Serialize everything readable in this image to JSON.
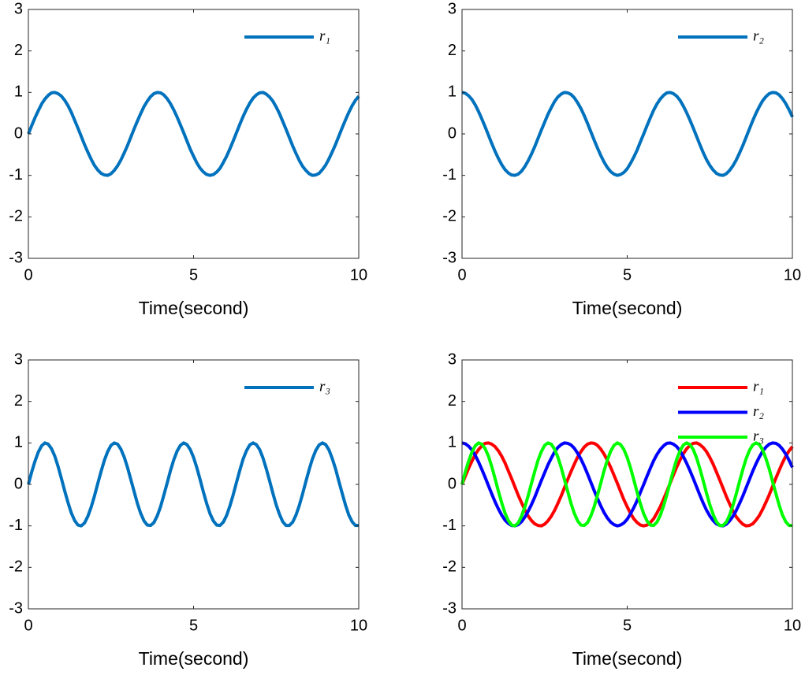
{
  "chart_data": [
    {
      "type": "line",
      "xlabel": "Time(second)",
      "x": [
        0,
        0.1,
        0.2,
        0.3,
        0.4,
        0.5,
        0.6,
        0.7,
        0.8,
        0.9,
        1,
        1.1,
        1.2,
        1.3,
        1.4,
        1.5,
        1.6,
        1.7,
        1.8,
        1.9,
        2,
        2.1,
        2.2,
        2.3,
        2.4,
        2.5,
        2.6,
        2.7,
        2.8,
        2.9,
        3,
        3.1,
        3.2,
        3.3,
        3.4,
        3.5,
        3.6,
        3.7,
        3.8,
        3.9,
        4,
        4.1,
        4.2,
        4.3,
        4.4,
        4.5,
        4.6,
        4.7,
        4.8,
        4.9,
        5,
        5.1,
        5.2,
        5.3,
        5.4,
        5.5,
        5.6,
        5.7,
        5.8,
        5.9,
        6,
        6.1,
        6.2,
        6.3,
        6.4,
        6.5,
        6.6,
        6.7,
        6.8,
        6.9,
        7,
        7.1,
        7.2,
        7.3,
        7.4,
        7.5,
        7.6,
        7.7,
        7.8,
        7.9,
        8,
        8.1,
        8.2,
        8.3,
        8.4,
        8.5,
        8.6,
        8.7,
        8.8,
        8.9,
        9,
        9.1,
        9.2,
        9.3,
        9.4,
        9.5,
        9.6,
        9.7,
        9.8,
        9.9,
        10
      ],
      "series": [
        {
          "name": "r₁",
          "color": "#0072bd",
          "values": [
            0,
            0.2,
            0.39,
            0.56,
            0.72,
            0.84,
            0.93,
            0.99,
            1,
            0.97,
            0.91,
            0.81,
            0.68,
            0.52,
            0.33,
            0.14,
            -0.06,
            -0.26,
            -0.44,
            -0.61,
            -0.76,
            -0.87,
            -0.95,
            -0.99,
            -1,
            -0.96,
            -0.88,
            -0.77,
            -0.63,
            -0.46,
            -0.28,
            -0.08,
            0.12,
            0.31,
            0.49,
            0.66,
            0.79,
            0.9,
            0.97,
            1,
            0.99,
            0.94,
            0.85,
            0.73,
            0.58,
            0.41,
            0.22,
            0.03,
            -0.17,
            -0.37,
            -0.54,
            -0.7,
            -0.83,
            -0.92,
            -0.98,
            -1,
            -0.98,
            -0.92,
            -0.83,
            -0.69,
            -0.54,
            -0.36,
            -0.17,
            0.03,
            0.23,
            0.42,
            0.59,
            0.74,
            0.86,
            0.94,
            0.99,
            1,
            0.96,
            0.89,
            0.79,
            0.65,
            0.49,
            0.3,
            0.11,
            -0.09,
            -0.29,
            -0.47,
            -0.64,
            -0.78,
            -0.88,
            -0.96,
            -1,
            -0.99,
            -0.95,
            -0.86,
            -0.75,
            -0.6,
            -0.43,
            -0.25,
            -0.05,
            0.15,
            0.34,
            0.52,
            0.68,
            0.81,
            0.91
          ]
        }
      ],
      "xlim": [
        0,
        10
      ],
      "ylim": [
        -3,
        3
      ],
      "xticks": [
        0,
        5,
        10
      ],
      "yticks": [
        -3,
        -2,
        -1,
        0,
        1,
        2,
        3
      ],
      "legend": "northeast"
    },
    {
      "type": "line",
      "xlabel": "Time(second)",
      "x": [
        0,
        0.1,
        0.2,
        0.3,
        0.4,
        0.5,
        0.6,
        0.7,
        0.8,
        0.9,
        1,
        1.1,
        1.2,
        1.3,
        1.4,
        1.5,
        1.6,
        1.7,
        1.8,
        1.9,
        2,
        2.1,
        2.2,
        2.3,
        2.4,
        2.5,
        2.6,
        2.7,
        2.8,
        2.9,
        3,
        3.1,
        3.2,
        3.3,
        3.4,
        3.5,
        3.6,
        3.7,
        3.8,
        3.9,
        4,
        4.1,
        4.2,
        4.3,
        4.4,
        4.5,
        4.6,
        4.7,
        4.8,
        4.9,
        5,
        5.1,
        5.2,
        5.3,
        5.4,
        5.5,
        5.6,
        5.7,
        5.8,
        5.9,
        6,
        6.1,
        6.2,
        6.3,
        6.4,
        6.5,
        6.6,
        6.7,
        6.8,
        6.9,
        7,
        7.1,
        7.2,
        7.3,
        7.4,
        7.5,
        7.6,
        7.7,
        7.8,
        7.9,
        8,
        8.1,
        8.2,
        8.3,
        8.4,
        8.5,
        8.6,
        8.7,
        8.8,
        8.9,
        9,
        9.1,
        9.2,
        9.3,
        9.4,
        9.5,
        9.6,
        9.7,
        9.8,
        9.9,
        10
      ],
      "series": [
        {
          "name": "r₂",
          "color": "#0072bd",
          "values": [
            1,
            0.98,
            0.92,
            0.83,
            0.7,
            0.54,
            0.36,
            0.17,
            -0.03,
            -0.23,
            -0.42,
            -0.59,
            -0.74,
            -0.86,
            -0.94,
            -0.99,
            -1,
            -0.97,
            -0.9,
            -0.79,
            -0.65,
            -0.49,
            -0.31,
            -0.11,
            0.09,
            0.28,
            0.47,
            0.63,
            0.78,
            0.89,
            0.96,
            1,
            0.99,
            0.95,
            0.87,
            0.75,
            0.61,
            0.44,
            0.25,
            0.05,
            -0.15,
            -0.34,
            -0.52,
            -0.68,
            -0.81,
            -0.91,
            -0.97,
            -1,
            -0.98,
            -0.93,
            -0.84,
            -0.71,
            -0.56,
            -0.39,
            -0.19,
            0,
            0.2,
            0.39,
            0.57,
            0.72,
            0.84,
            0.93,
            0.99,
            1,
            0.97,
            0.91,
            0.81,
            0.67,
            0.51,
            0.33,
            0.14,
            -0.06,
            -0.26,
            -0.45,
            -0.62,
            -0.76,
            -0.87,
            -0.95,
            -0.99,
            -1,
            -0.96,
            -0.88,
            -0.77,
            -0.63,
            -0.46,
            -0.28,
            -0.08,
            0.12,
            0.32,
            0.5,
            0.66,
            0.8,
            0.9,
            0.97,
            1,
            0.99,
            0.94,
            0.85,
            0.73,
            0.58,
            0.41
          ]
        }
      ],
      "xlim": [
        0,
        10
      ],
      "ylim": [
        -3,
        3
      ],
      "xticks": [
        0,
        5,
        10
      ],
      "yticks": [
        -3,
        -2,
        -1,
        0,
        1,
        2,
        3
      ],
      "legend": "northeast"
    },
    {
      "type": "line",
      "xlabel": "Time(second)",
      "x": [
        0,
        0.1,
        0.2,
        0.3,
        0.4,
        0.5,
        0.6,
        0.7,
        0.8,
        0.9,
        1,
        1.1,
        1.2,
        1.3,
        1.4,
        1.5,
        1.6,
        1.7,
        1.8,
        1.9,
        2,
        2.1,
        2.2,
        2.3,
        2.4,
        2.5,
        2.6,
        2.7,
        2.8,
        2.9,
        3,
        3.1,
        3.2,
        3.3,
        3.4,
        3.5,
        3.6,
        3.7,
        3.8,
        3.9,
        4,
        4.1,
        4.2,
        4.3,
        4.4,
        4.5,
        4.6,
        4.7,
        4.8,
        4.9,
        5,
        5.1,
        5.2,
        5.3,
        5.4,
        5.5,
        5.6,
        5.7,
        5.8,
        5.9,
        6,
        6.1,
        6.2,
        6.3,
        6.4,
        6.5,
        6.6,
        6.7,
        6.8,
        6.9,
        7,
        7.1,
        7.2,
        7.3,
        7.4,
        7.5,
        7.6,
        7.7,
        7.8,
        7.9,
        8,
        8.1,
        8.2,
        8.3,
        8.4,
        8.5,
        8.6,
        8.7,
        8.8,
        8.9,
        9,
        9.1,
        9.2,
        9.3,
        9.4,
        9.5,
        9.6,
        9.7,
        9.8,
        9.9,
        10
      ],
      "series": [
        {
          "name": "r₃",
          "color": "#0072bd",
          "values": [
            0,
            0.3,
            0.56,
            0.78,
            0.93,
            1,
            0.97,
            0.86,
            0.68,
            0.43,
            0.14,
            -0.16,
            -0.44,
            -0.69,
            -0.87,
            -0.98,
            -1,
            -0.93,
            -0.77,
            -0.55,
            -0.28,
            0.02,
            0.31,
            0.58,
            0.79,
            0.94,
            1,
            0.97,
            0.85,
            0.66,
            0.41,
            0.12,
            -0.17,
            -0.46,
            -0.7,
            -0.88,
            -0.98,
            -0.99,
            -0.92,
            -0.76,
            -0.54,
            -0.26,
            0.03,
            0.33,
            0.59,
            0.8,
            0.94,
            1,
            0.96,
            0.84,
            0.65,
            0.4,
            0.11,
            -0.19,
            -0.47,
            -0.71,
            -0.88,
            -0.98,
            -0.99,
            -0.91,
            -0.75,
            -0.52,
            -0.25,
            0.05,
            0.34,
            0.61,
            0.81,
            0.95,
            1,
            0.96,
            0.84,
            0.64,
            0.38,
            0.09,
            -0.21,
            -0.49,
            -0.72,
            -0.9,
            -0.99,
            -0.99,
            -0.91,
            -0.74,
            -0.51,
            -0.23,
            0.07,
            0.36,
            0.62,
            0.82,
            0.95,
            1,
            0.96,
            0.83,
            0.62,
            0.37,
            0.07,
            -0.22,
            -0.5,
            -0.74,
            -0.9,
            -0.99,
            -0.99
          ]
        }
      ],
      "xlim": [
        0,
        10
      ],
      "ylim": [
        -3,
        3
      ],
      "xticks": [
        0,
        5,
        10
      ],
      "yticks": [
        -3,
        -2,
        -1,
        0,
        1,
        2,
        3
      ],
      "legend": "northeast"
    },
    {
      "type": "line",
      "xlabel": "Time(second)",
      "x": [
        0,
        0.1,
        0.2,
        0.3,
        0.4,
        0.5,
        0.6,
        0.7,
        0.8,
        0.9,
        1,
        1.1,
        1.2,
        1.3,
        1.4,
        1.5,
        1.6,
        1.7,
        1.8,
        1.9,
        2,
        2.1,
        2.2,
        2.3,
        2.4,
        2.5,
        2.6,
        2.7,
        2.8,
        2.9,
        3,
        3.1,
        3.2,
        3.3,
        3.4,
        3.5,
        3.6,
        3.7,
        3.8,
        3.9,
        4,
        4.1,
        4.2,
        4.3,
        4.4,
        4.5,
        4.6,
        4.7,
        4.8,
        4.9,
        5,
        5.1,
        5.2,
        5.3,
        5.4,
        5.5,
        5.6,
        5.7,
        5.8,
        5.9,
        6,
        6.1,
        6.2,
        6.3,
        6.4,
        6.5,
        6.6,
        6.7,
        6.8,
        6.9,
        7,
        7.1,
        7.2,
        7.3,
        7.4,
        7.5,
        7.6,
        7.7,
        7.8,
        7.9,
        8,
        8.1,
        8.2,
        8.3,
        8.4,
        8.5,
        8.6,
        8.7,
        8.8,
        8.9,
        9,
        9.1,
        9.2,
        9.3,
        9.4,
        9.5,
        9.6,
        9.7,
        9.8,
        9.9,
        10
      ],
      "series": [
        {
          "name": "r₁",
          "color": "#ff0000",
          "values": [
            0,
            0.2,
            0.39,
            0.56,
            0.72,
            0.84,
            0.93,
            0.99,
            1,
            0.97,
            0.91,
            0.81,
            0.68,
            0.52,
            0.33,
            0.14,
            -0.06,
            -0.26,
            -0.44,
            -0.61,
            -0.76,
            -0.87,
            -0.95,
            -0.99,
            -1,
            -0.96,
            -0.88,
            -0.77,
            -0.63,
            -0.46,
            -0.28,
            -0.08,
            0.12,
            0.31,
            0.49,
            0.66,
            0.79,
            0.9,
            0.97,
            1,
            0.99,
            0.94,
            0.85,
            0.73,
            0.58,
            0.41,
            0.22,
            0.03,
            -0.17,
            -0.37,
            -0.54,
            -0.7,
            -0.83,
            -0.92,
            -0.98,
            -1,
            -0.98,
            -0.92,
            -0.83,
            -0.69,
            -0.54,
            -0.36,
            -0.17,
            0.03,
            0.23,
            0.42,
            0.59,
            0.74,
            0.86,
            0.94,
            0.99,
            1,
            0.96,
            0.89,
            0.79,
            0.65,
            0.49,
            0.3,
            0.11,
            -0.09,
            -0.29,
            -0.47,
            -0.64,
            -0.78,
            -0.88,
            -0.96,
            -1,
            -0.99,
            -0.95,
            -0.86,
            -0.75,
            -0.6,
            -0.43,
            -0.25,
            -0.05,
            0.15,
            0.34,
            0.52,
            0.68,
            0.81,
            0.91
          ]
        },
        {
          "name": "r₂",
          "color": "#0000ff",
          "values": [
            1,
            0.98,
            0.92,
            0.83,
            0.7,
            0.54,
            0.36,
            0.17,
            -0.03,
            -0.23,
            -0.42,
            -0.59,
            -0.74,
            -0.86,
            -0.94,
            -0.99,
            -1,
            -0.97,
            -0.9,
            -0.79,
            -0.65,
            -0.49,
            -0.31,
            -0.11,
            0.09,
            0.28,
            0.47,
            0.63,
            0.78,
            0.89,
            0.96,
            1,
            0.99,
            0.95,
            0.87,
            0.75,
            0.61,
            0.44,
            0.25,
            0.05,
            -0.15,
            -0.34,
            -0.52,
            -0.68,
            -0.81,
            -0.91,
            -0.97,
            -1,
            -0.98,
            -0.93,
            -0.84,
            -0.71,
            -0.56,
            -0.39,
            -0.19,
            0,
            0.2,
            0.39,
            0.57,
            0.72,
            0.84,
            0.93,
            0.99,
            1,
            0.97,
            0.91,
            0.81,
            0.67,
            0.51,
            0.33,
            0.14,
            -0.06,
            -0.26,
            -0.45,
            -0.62,
            -0.76,
            -0.87,
            -0.95,
            -0.99,
            -1,
            -0.96,
            -0.88,
            -0.77,
            -0.63,
            -0.46,
            -0.28,
            -0.08,
            0.12,
            0.32,
            0.5,
            0.66,
            0.8,
            0.9,
            0.97,
            1,
            0.99,
            0.94,
            0.85,
            0.73,
            0.58,
            0.41
          ]
        },
        {
          "name": "r₃",
          "color": "#00ff00",
          "values": [
            0,
            0.3,
            0.56,
            0.78,
            0.93,
            1,
            0.97,
            0.86,
            0.68,
            0.43,
            0.14,
            -0.16,
            -0.44,
            -0.69,
            -0.87,
            -0.98,
            -1,
            -0.93,
            -0.77,
            -0.55,
            -0.28,
            0.02,
            0.31,
            0.58,
            0.79,
            0.94,
            1,
            0.97,
            0.85,
            0.66,
            0.41,
            0.12,
            -0.17,
            -0.46,
            -0.7,
            -0.88,
            -0.98,
            -0.99,
            -0.92,
            -0.76,
            -0.54,
            -0.26,
            0.03,
            0.33,
            0.59,
            0.8,
            0.94,
            1,
            0.96,
            0.84,
            0.65,
            0.4,
            0.11,
            -0.19,
            -0.47,
            -0.71,
            -0.88,
            -0.98,
            -0.99,
            -0.91,
            -0.75,
            -0.52,
            -0.25,
            0.05,
            0.34,
            0.61,
            0.81,
            0.95,
            1,
            0.96,
            0.84,
            0.64,
            0.38,
            0.09,
            -0.21,
            -0.49,
            -0.72,
            -0.9,
            -0.99,
            -0.99,
            -0.91,
            -0.74,
            -0.51,
            -0.23,
            0.07,
            0.36,
            0.62,
            0.82,
            0.95,
            1,
            0.96,
            0.83,
            0.62,
            0.37,
            0.07,
            -0.22,
            -0.5,
            -0.74,
            -0.9,
            -0.99,
            -0.99
          ]
        }
      ],
      "xlim": [
        0,
        10
      ],
      "ylim": [
        -3,
        3
      ],
      "xticks": [
        0,
        5,
        10
      ],
      "yticks": [
        -3,
        -2,
        -1,
        0,
        1,
        2,
        3
      ],
      "legend": "northeast"
    }
  ]
}
